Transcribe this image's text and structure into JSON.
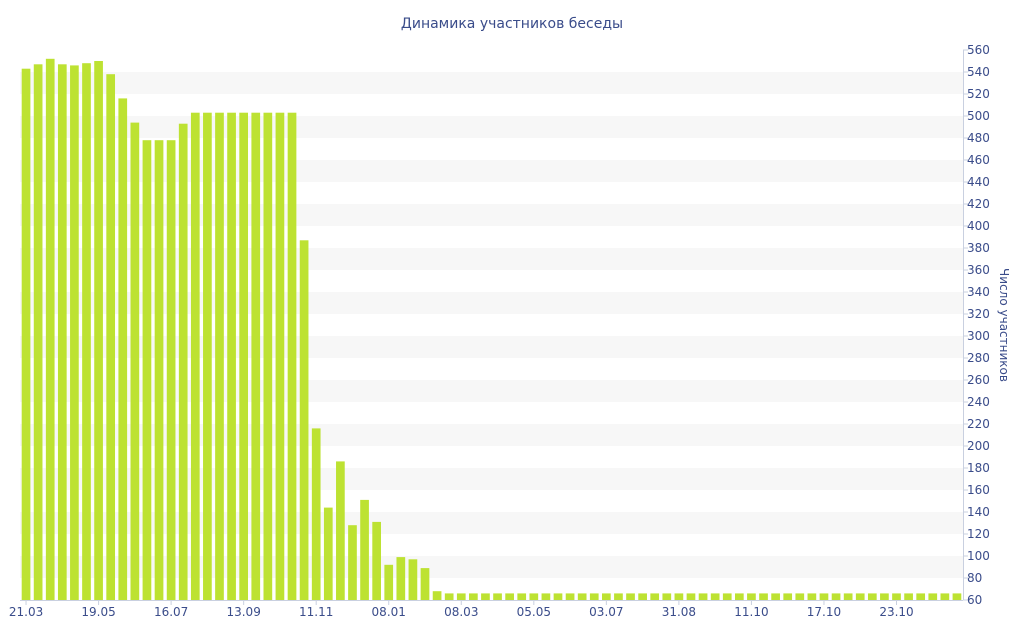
{
  "chart_data": {
    "type": "bar",
    "title": "Динамика участников беседы",
    "xlabel": "",
    "ylabel": "Число участников",
    "ylim": [
      60,
      560
    ],
    "yticks": [
      60,
      80,
      100,
      120,
      140,
      160,
      180,
      200,
      220,
      240,
      260,
      280,
      300,
      320,
      340,
      360,
      380,
      400,
      420,
      440,
      460,
      480,
      500,
      520,
      540,
      560
    ],
    "grid": "horizontal bands",
    "legend": "none",
    "bar_color": "#bde232",
    "axis_text_color": "#3a4c8a",
    "x_tick_labels": [
      {
        "index": 0,
        "label": "21.03"
      },
      {
        "index": 6,
        "label": "19.05"
      },
      {
        "index": 12,
        "label": "16.07"
      },
      {
        "index": 18,
        "label": "13.09"
      },
      {
        "index": 24,
        "label": "11.11"
      },
      {
        "index": 30,
        "label": "08.01"
      },
      {
        "index": 36,
        "label": "08.03"
      },
      {
        "index": 42,
        "label": "05.05"
      },
      {
        "index": 48,
        "label": "03.07"
      },
      {
        "index": 54,
        "label": "31.08"
      },
      {
        "index": 60,
        "label": "11.10"
      },
      {
        "index": 66,
        "label": "17.10"
      },
      {
        "index": 72,
        "label": "23.10"
      }
    ],
    "values": [
      543,
      547,
      552,
      547,
      546,
      548,
      550,
      538,
      516,
      494,
      478,
      478,
      478,
      493,
      503,
      503,
      503,
      503,
      503,
      503,
      503,
      503,
      503,
      387,
      216,
      144,
      186,
      128,
      151,
      131,
      92,
      99,
      97,
      89,
      68,
      66,
      66,
      66,
      66,
      66,
      66,
      66,
      66,
      66,
      66,
      66,
      66,
      66,
      66,
      66,
      66,
      66,
      66,
      66,
      66,
      66,
      66,
      66,
      66,
      66,
      66,
      66,
      66,
      66,
      66,
      66,
      66,
      66,
      66,
      66,
      66,
      66,
      66,
      66,
      66,
      66,
      66,
      66
    ]
  }
}
